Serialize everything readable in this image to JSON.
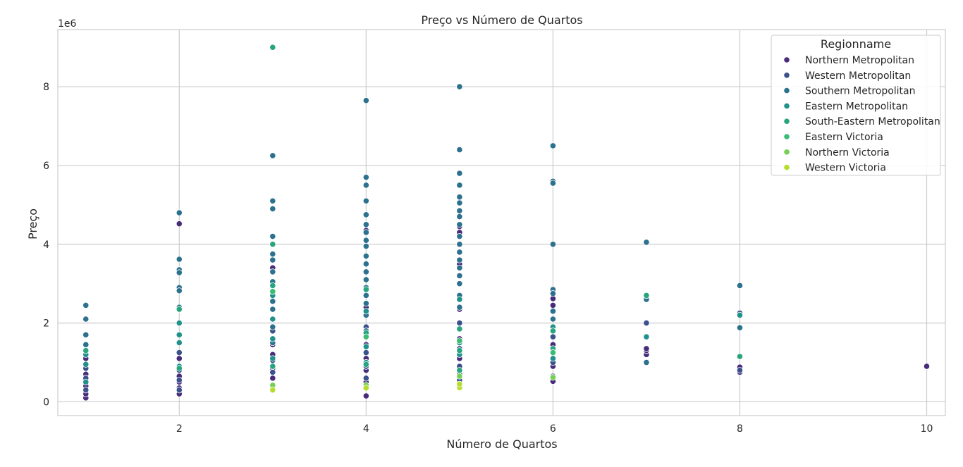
{
  "chart_data": {
    "type": "scatter",
    "title": "Preço vs Número de Quartos",
    "xlabel": "Número de Quartos",
    "ylabel": "Preço",
    "y_offset_label": "1e6",
    "xlim": [
      0.7,
      10.2
    ],
    "ylim": [
      -0.35,
      9.45
    ],
    "x_ticks": [
      "2",
      "4",
      "6",
      "8",
      "10"
    ],
    "y_ticks": [
      "0",
      "2",
      "4",
      "6",
      "8"
    ],
    "grid": true,
    "legend_title": "Regionname",
    "legend_position": "top-right",
    "series": [
      {
        "name": "Northern Metropolitan",
        "color": "#472c7a",
        "x": [
          1,
          1,
          1,
          1,
          1,
          1,
          1,
          1,
          2,
          2,
          2,
          2,
          2,
          2,
          3,
          3,
          3,
          3,
          3,
          3,
          3,
          4,
          4,
          4,
          4,
          4,
          4,
          4,
          4,
          5,
          5,
          5,
          5,
          5,
          5,
          5,
          6,
          6,
          6,
          6,
          6,
          7,
          7,
          7,
          8,
          8,
          10
        ],
        "y": [
          0.1,
          0.2,
          0.4,
          0.55,
          0.7,
          0.9,
          1.1,
          1.7,
          0.2,
          0.35,
          0.5,
          0.65,
          1.1,
          4.52,
          0.35,
          0.6,
          0.85,
          1.2,
          1.45,
          2.35,
          3.4,
          0.15,
          0.5,
          0.8,
          1.1,
          1.45,
          2.4,
          4.3,
          4.35,
          0.7,
          1.1,
          1.6,
          2.35,
          3.5,
          4.3,
          4.45,
          0.52,
          0.9,
          1.45,
          2.45,
          2.62,
          1.2,
          1.3,
          1.35,
          0.75,
          0.88,
          0.9
        ]
      },
      {
        "name": "Western Metropolitan",
        "color": "#3b518b",
        "x": [
          1,
          1,
          1,
          1,
          2,
          2,
          2,
          2,
          3,
          3,
          3,
          3,
          4,
          4,
          4,
          4,
          4,
          5,
          5,
          5,
          5,
          6,
          6,
          6,
          7,
          8,
          8
        ],
        "y": [
          0.3,
          0.6,
          0.85,
          1.3,
          0.3,
          0.55,
          0.8,
          1.25,
          0.4,
          0.75,
          1.05,
          1.8,
          0.35,
          0.6,
          0.9,
          1.25,
          1.9,
          0.55,
          0.9,
          1.35,
          2.0,
          0.65,
          1.0,
          1.65,
          2.0,
          2.25,
          0.8
        ]
      },
      {
        "name": "Southern Metropolitan",
        "color": "#2c718e",
        "x": [
          1,
          1,
          1,
          1,
          2,
          2,
          2,
          2,
          2,
          2,
          2,
          3,
          3,
          3,
          3,
          3,
          3,
          3,
          3,
          3,
          3,
          3,
          3,
          3,
          4,
          4,
          4,
          4,
          4,
          4,
          4,
          4,
          4,
          4,
          4,
          4,
          4,
          4,
          4,
          4,
          4,
          4,
          5,
          5,
          5,
          5,
          5,
          5,
          5,
          5,
          5,
          5,
          5,
          5,
          5,
          5,
          5,
          5,
          5,
          5,
          6,
          6,
          6,
          6,
          6,
          6,
          6,
          6,
          7,
          7,
          7,
          8,
          8
        ],
        "y": [
          2.45,
          2.1,
          1.7,
          1.45,
          4.8,
          3.62,
          3.35,
          3.28,
          2.9,
          2.82,
          2.4,
          6.25,
          5.1,
          4.9,
          4.2,
          3.75,
          3.6,
          3.3,
          3.05,
          2.8,
          2.55,
          2.35,
          1.9,
          1.5,
          7.65,
          5.7,
          5.5,
          5.1,
          4.75,
          4.5,
          4.3,
          4.1,
          3.95,
          3.7,
          3.5,
          3.3,
          3.1,
          2.9,
          2.7,
          2.5,
          2.2,
          1.8,
          8.0,
          6.4,
          5.8,
          5.5,
          5.2,
          5.05,
          4.85,
          4.7,
          4.5,
          4.2,
          4.0,
          3.8,
          3.6,
          3.4,
          3.2,
          3.0,
          2.7,
          2.4,
          6.5,
          5.6,
          5.55,
          4.0,
          2.85,
          2.75,
          2.3,
          2.1,
          4.05,
          2.6,
          1.0,
          2.95,
          1.88
        ]
      },
      {
        "name": "Eastern Metropolitan",
        "color": "#21918c",
        "x": [
          1,
          1,
          1,
          2,
          2,
          2,
          2,
          3,
          3,
          3,
          3,
          4,
          4,
          4,
          4,
          5,
          5,
          5,
          5,
          6,
          6,
          6,
          7,
          8
        ],
        "y": [
          0.5,
          0.95,
          1.2,
          0.9,
          1.5,
          1.7,
          2.0,
          1.1,
          1.6,
          2.1,
          2.7,
          1.0,
          1.4,
          1.7,
          2.3,
          1.2,
          1.5,
          1.85,
          2.6,
          1.1,
          1.3,
          1.9,
          1.65,
          2.2
        ]
      },
      {
        "name": "South-Eastern Metropolitan",
        "color": "#28a47e",
        "x": [
          1,
          2,
          2,
          3,
          3,
          3,
          3,
          4,
          4,
          4,
          5,
          5,
          5,
          6,
          6,
          7,
          8
        ],
        "y": [
          1.3,
          0.85,
          2.35,
          9.0,
          4.0,
          2.95,
          0.9,
          0.95,
          1.75,
          2.85,
          1.3,
          1.85,
          0.8,
          1.35,
          1.8,
          2.7,
          1.15
        ]
      },
      {
        "name": "Eastern Victoria",
        "color": "#3bbc74",
        "x": [
          3,
          4,
          5,
          6
        ],
        "y": [
          2.8,
          1.65,
          1.55,
          1.25
        ]
      },
      {
        "name": "Northern Victoria",
        "color": "#74d055",
        "x": [
          3,
          4,
          5,
          6
        ],
        "y": [
          0.42,
          0.42,
          0.65,
          0.62
        ]
      },
      {
        "name": "Western Victoria",
        "color": "#b5dd2b",
        "x": [
          3,
          4,
          5,
          5
        ],
        "y": [
          0.3,
          0.35,
          0.36,
          0.45
        ]
      }
    ]
  }
}
